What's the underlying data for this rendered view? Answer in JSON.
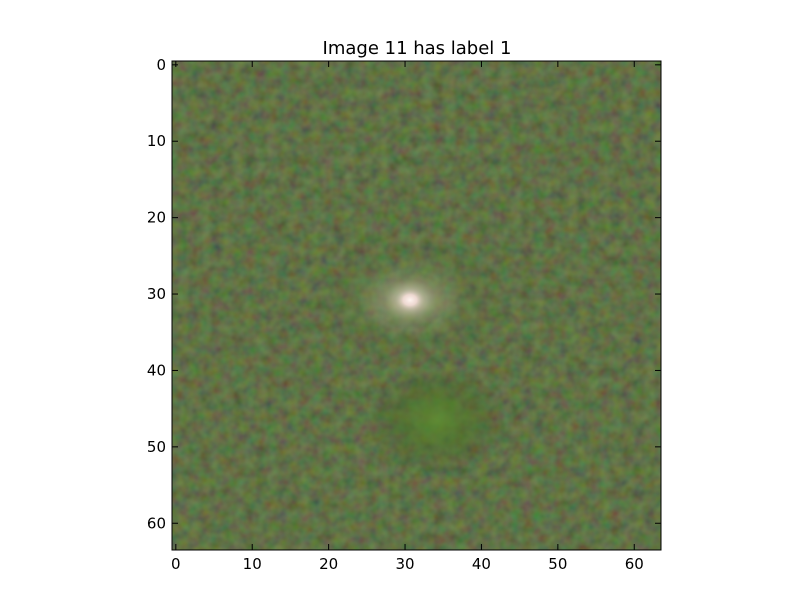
{
  "figure": {
    "title": "Image 11 has label 1"
  },
  "axes": {
    "xticks": [
      "0",
      "10",
      "20",
      "30",
      "40",
      "50",
      "60"
    ],
    "yticks": [
      "0",
      "10",
      "20",
      "30",
      "40",
      "50",
      "60"
    ],
    "xlim": [
      -0.5,
      63.5
    ],
    "ylim": [
      63.5,
      -0.5
    ]
  },
  "image": {
    "shape": [
      64,
      64
    ],
    "channels": "rgb",
    "content": "noisy dark green/brown background with a bright compact white source near pixel (31, 31) and a faint diffuse green source near (35, 47)",
    "background_color": "#3a3a22",
    "bright_source": {
      "x": 31,
      "y": 31,
      "color": "#f4e6e0"
    },
    "faint_source": {
      "x": 35,
      "y": 47,
      "color": "#4f7a2c"
    }
  }
}
